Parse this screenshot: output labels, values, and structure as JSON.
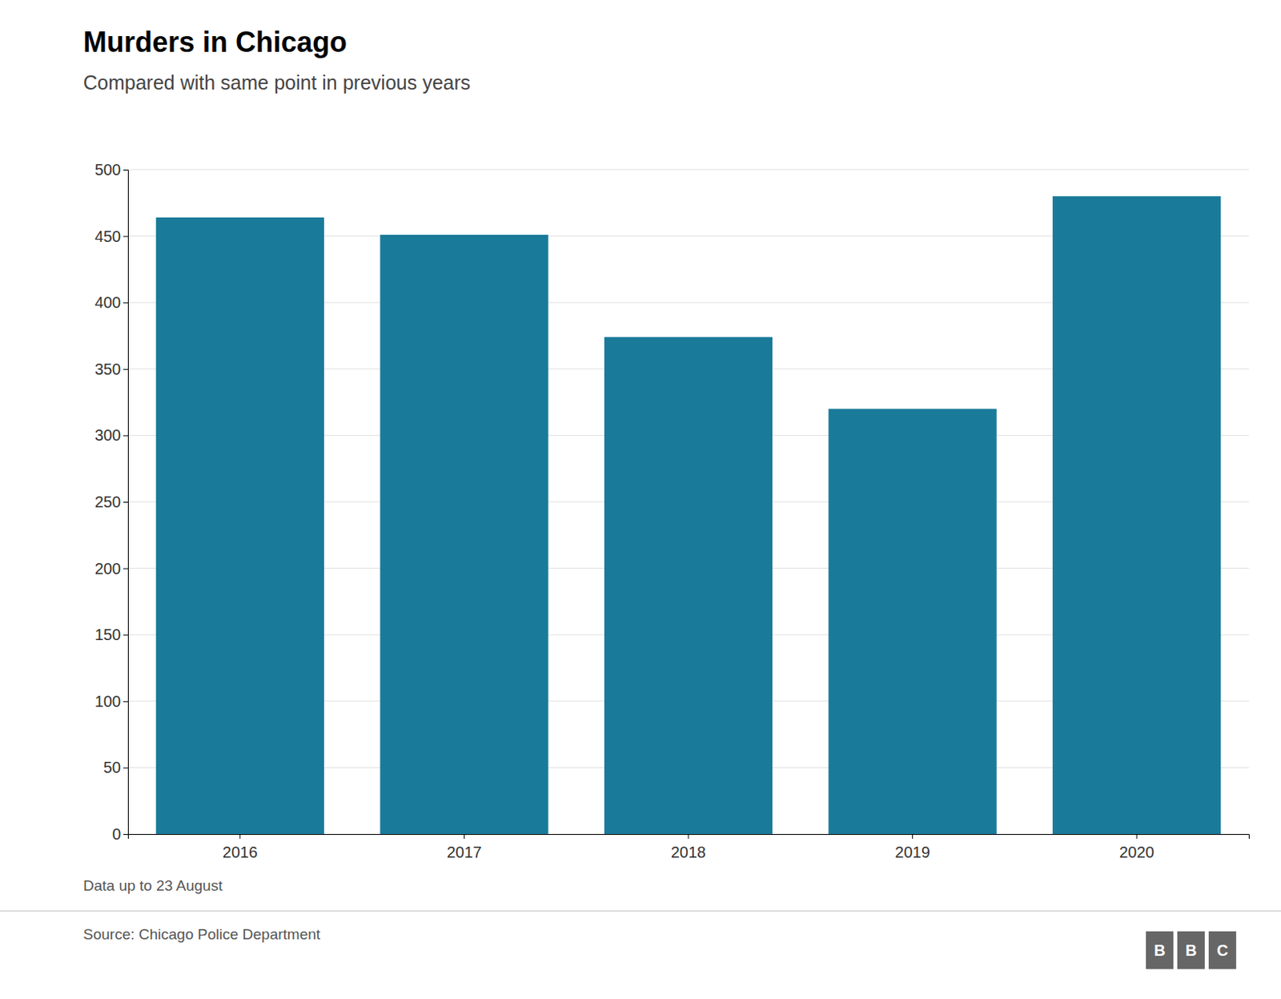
{
  "chart_data": {
    "type": "bar",
    "title": "Murders in Chicago",
    "subtitle": "Compared with same point in previous years",
    "categories": [
      "2016",
      "2017",
      "2018",
      "2019",
      "2020"
    ],
    "values": [
      464,
      451,
      374,
      320,
      480
    ],
    "color": "#1a7a9a",
    "ylim": [
      0,
      500
    ],
    "yticks": [
      0,
      50,
      100,
      150,
      200,
      250,
      300,
      350,
      400,
      450,
      500
    ],
    "grid": true,
    "note": "Data up to 23 August",
    "source": "Source: Chicago Police Department",
    "logo": "BBC"
  }
}
